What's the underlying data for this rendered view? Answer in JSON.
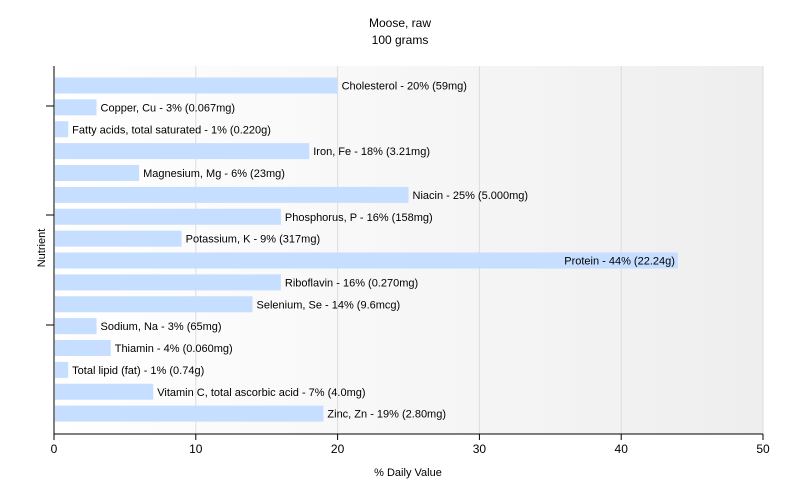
{
  "chart_data": {
    "type": "bar",
    "orientation": "horizontal",
    "title": "Moose, raw",
    "subtitle": "100 grams",
    "xlabel": "% Daily Value",
    "ylabel": "Nutrient",
    "xlim": [
      0,
      50
    ],
    "xticks": [
      0,
      10,
      20,
      30,
      40,
      50
    ],
    "grid": true,
    "bar_color": "#c6deff",
    "categories": [
      "Cholesterol",
      "Copper, Cu",
      "Fatty acids, total saturated",
      "Iron, Fe",
      "Magnesium, Mg",
      "Niacin",
      "Phosphorus, P",
      "Potassium, K",
      "Protein",
      "Riboflavin",
      "Selenium, Se",
      "Sodium, Na",
      "Thiamin",
      "Total lipid (fat)",
      "Vitamin C, total ascorbic acid",
      "Zinc, Zn"
    ],
    "values": [
      20,
      3,
      1,
      18,
      6,
      25,
      16,
      9,
      44,
      16,
      14,
      3,
      4,
      1,
      7,
      19
    ],
    "labels": [
      "Cholesterol - 20% (59mg)",
      "Copper, Cu - 3% (0.067mg)",
      "Fatty acids, total saturated - 1% (0.220g)",
      "Iron, Fe - 18% (3.21mg)",
      "Magnesium, Mg - 6% (23mg)",
      "Niacin - 25% (5.000mg)",
      "Phosphorus, P - 16% (158mg)",
      "Potassium, K - 9% (317mg)",
      "Protein - 44% (22.24g)",
      "Riboflavin - 16% (0.270mg)",
      "Selenium, Se - 14% (9.6mcg)",
      "Sodium, Na - 3% (65mg)",
      "Thiamin - 4% (0.060mg)",
      "Total lipid (fat) - 1% (0.74g)",
      "Vitamin C, total ascorbic acid - 7% (4.0mg)",
      "Zinc, Zn - 19% (2.80mg)"
    ],
    "label_inside": [
      false,
      false,
      false,
      false,
      false,
      false,
      false,
      false,
      true,
      false,
      false,
      false,
      false,
      false,
      false,
      false
    ]
  }
}
